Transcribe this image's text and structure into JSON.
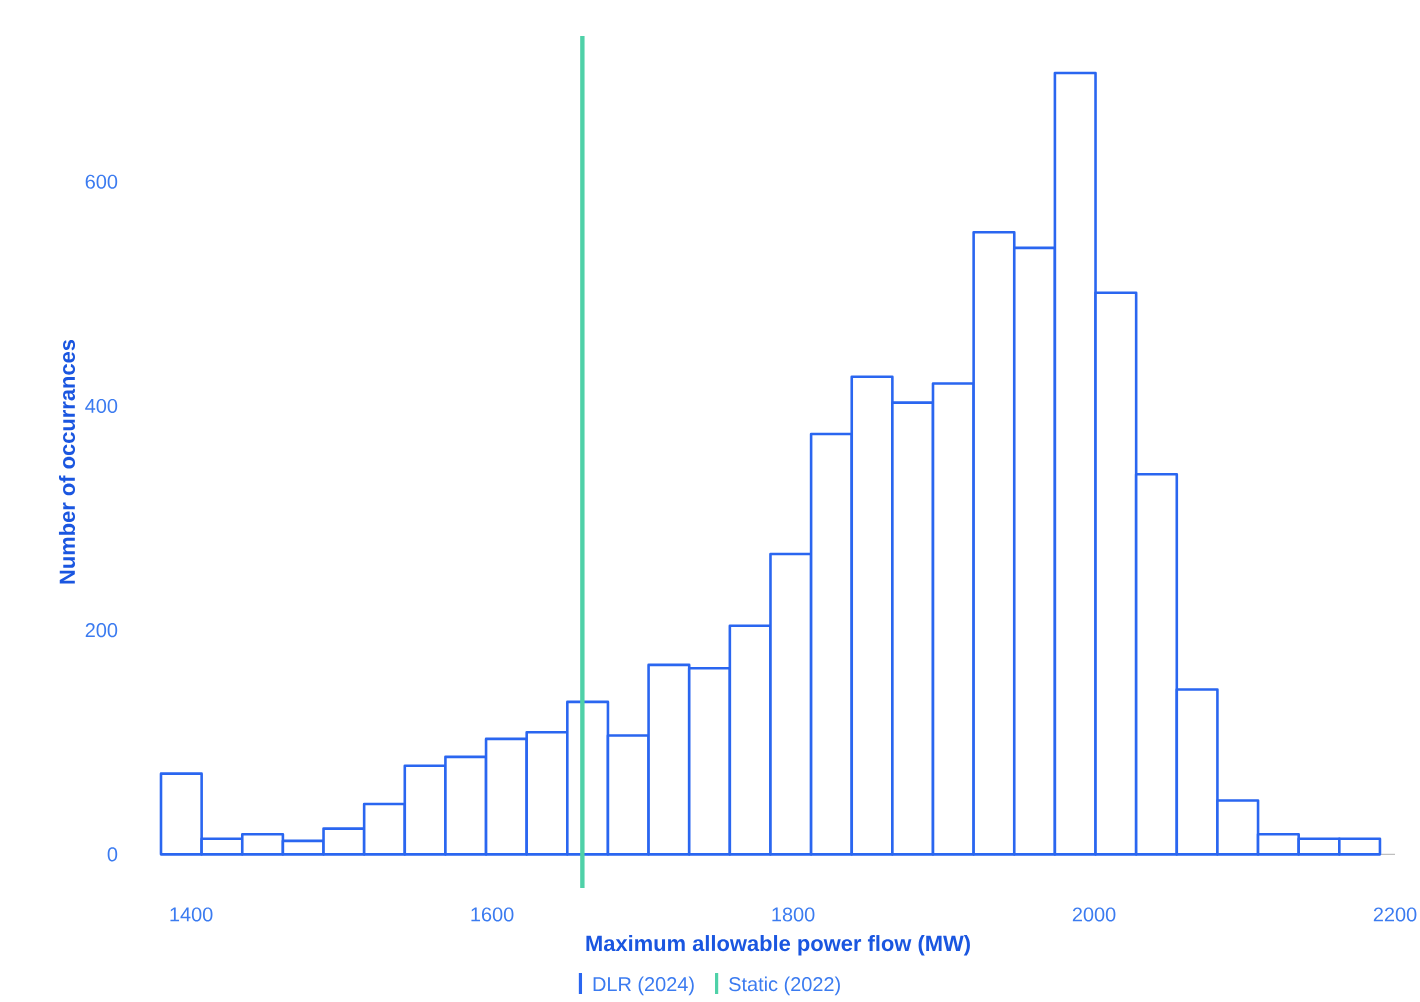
{
  "chart_data": {
    "type": "histogram",
    "xlabel": "Maximum allowable power flow (MW)",
    "ylabel": "Number of occurrances",
    "bins": [
      1380,
      1407,
      1434,
      1461,
      1488,
      1515,
      1542,
      1569,
      1596,
      1623,
      1650,
      1677,
      1704,
      1731,
      1758,
      1785,
      1812,
      1839,
      1866,
      1893,
      1920,
      1947,
      1974,
      2001,
      2028,
      2055,
      2082,
      2109,
      2136,
      2163,
      2190
    ],
    "series": [
      {
        "name": "DLR (2024)",
        "color": "#2a66f0",
        "values": [
          72,
          14,
          18,
          12,
          23,
          45,
          79,
          87,
          103,
          109,
          136,
          106,
          169,
          166,
          204,
          268,
          375,
          426,
          403,
          420,
          555,
          541,
          697,
          501,
          339,
          147,
          48,
          18,
          14,
          14
        ]
      }
    ],
    "xlim": [
      1380,
      2200
    ],
    "ylim": [
      -30,
      730
    ],
    "xticks": [
      1400,
      1600,
      1800,
      2000,
      2200
    ],
    "yticks": [
      0,
      200,
      400,
      600
    ],
    "ref_lines": [
      {
        "axis": "x",
        "value": 1660,
        "label": "Static (2022)",
        "color": "#4fd1a8"
      }
    ],
    "legend": "bottom"
  }
}
